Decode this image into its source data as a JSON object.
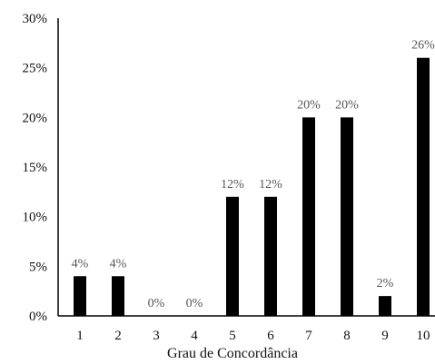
{
  "chart_data": {
    "type": "bar",
    "title": "",
    "xlabel": "Grau de Concordância",
    "ylabel": "",
    "categories": [
      "1",
      "2",
      "3",
      "4",
      "5",
      "6",
      "7",
      "8",
      "9",
      "10"
    ],
    "values": [
      4,
      4,
      0,
      0,
      12,
      12,
      20,
      20,
      2,
      26
    ],
    "data_labels": [
      "4%",
      "4%",
      "0%",
      "0%",
      "12%",
      "12%",
      "20%",
      "20%",
      "2%",
      "26%"
    ],
    "ylim": [
      0,
      30
    ],
    "yticks": [
      0,
      5,
      10,
      15,
      20,
      25,
      30
    ],
    "ytick_labels": [
      "0%",
      "5%",
      "10%",
      "15%",
      "20%",
      "25%",
      "30%"
    ],
    "grid": false,
    "legend": "none",
    "colors": {
      "bar": "#000000",
      "axis": "#000000"
    }
  }
}
